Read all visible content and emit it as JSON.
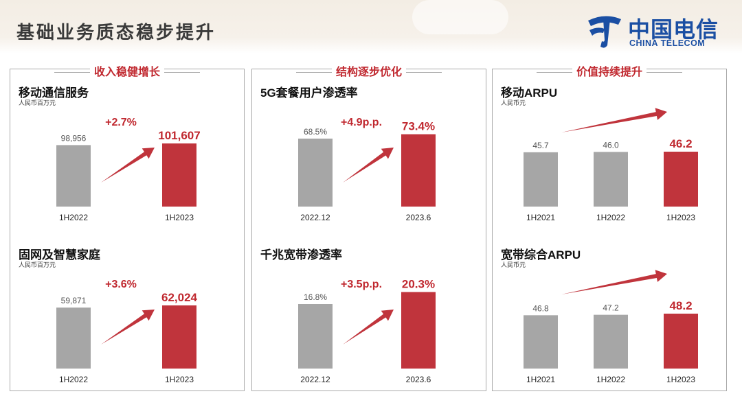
{
  "page": {
    "title": "基础业务质态稳步提升"
  },
  "logo": {
    "name_cn": "中国电信",
    "name_en": "CHINA TELECOM",
    "color": "#1b4fa3"
  },
  "colors": {
    "accent": "#c0282f",
    "bar_gray": "#a6a6a6",
    "bar_red": "#c0343c",
    "arrow": "#c0343c"
  },
  "panels": [
    {
      "header": "收入稳健增长",
      "charts": [
        {
          "title": "移动通信服务",
          "subtitle": "人民币百万元",
          "chart_data": {
            "type": "bar",
            "categories": [
              "1H2022",
              "1H2023"
            ],
            "values": [
              98956,
              101607
            ],
            "labels": [
              "98,956",
              "101,607"
            ],
            "growth": "+2.7%",
            "highlight_last": true
          }
        },
        {
          "title": "固网及智慧家庭",
          "subtitle": "人民币百万元",
          "chart_data": {
            "type": "bar",
            "categories": [
              "1H2022",
              "1H2023"
            ],
            "values": [
              59871,
              62024
            ],
            "labels": [
              "59,871",
              "62,024"
            ],
            "growth": "+3.6%",
            "highlight_last": true
          }
        }
      ]
    },
    {
      "header": "结构逐步优化",
      "charts": [
        {
          "title": "5G套餐用户渗透率",
          "subtitle": "",
          "chart_data": {
            "type": "bar",
            "categories": [
              "2022.12",
              "2023.6"
            ],
            "values": [
              68.5,
              73.4
            ],
            "labels": [
              "68.5%",
              "73.4%"
            ],
            "growth": "+4.9p.p.",
            "highlight_last": true
          }
        },
        {
          "title": "千兆宽带渗透率",
          "subtitle": "",
          "chart_data": {
            "type": "bar",
            "categories": [
              "2022.12",
              "2023.6"
            ],
            "values": [
              16.8,
              20.3
            ],
            "labels": [
              "16.8%",
              "20.3%"
            ],
            "growth": "+3.5p.p.",
            "highlight_last": true
          }
        }
      ]
    },
    {
      "header": "价值持续提升",
      "charts": [
        {
          "title": "移动ARPU",
          "subtitle": "人民币元",
          "chart_data": {
            "type": "bar",
            "categories": [
              "1H2021",
              "1H2022",
              "1H2023"
            ],
            "values": [
              45.7,
              46.0,
              46.2
            ],
            "labels": [
              "45.7",
              "46.0",
              "46.2"
            ],
            "growth": "",
            "highlight_last": true
          }
        },
        {
          "title": "宽带综合ARPU",
          "subtitle": "人民币元",
          "chart_data": {
            "type": "bar",
            "categories": [
              "1H2021",
              "1H2022",
              "1H2023"
            ],
            "values": [
              46.8,
              47.2,
              48.2
            ],
            "labels": [
              "46.8",
              "47.2",
              "48.2"
            ],
            "growth": "",
            "highlight_last": true
          }
        }
      ]
    }
  ]
}
